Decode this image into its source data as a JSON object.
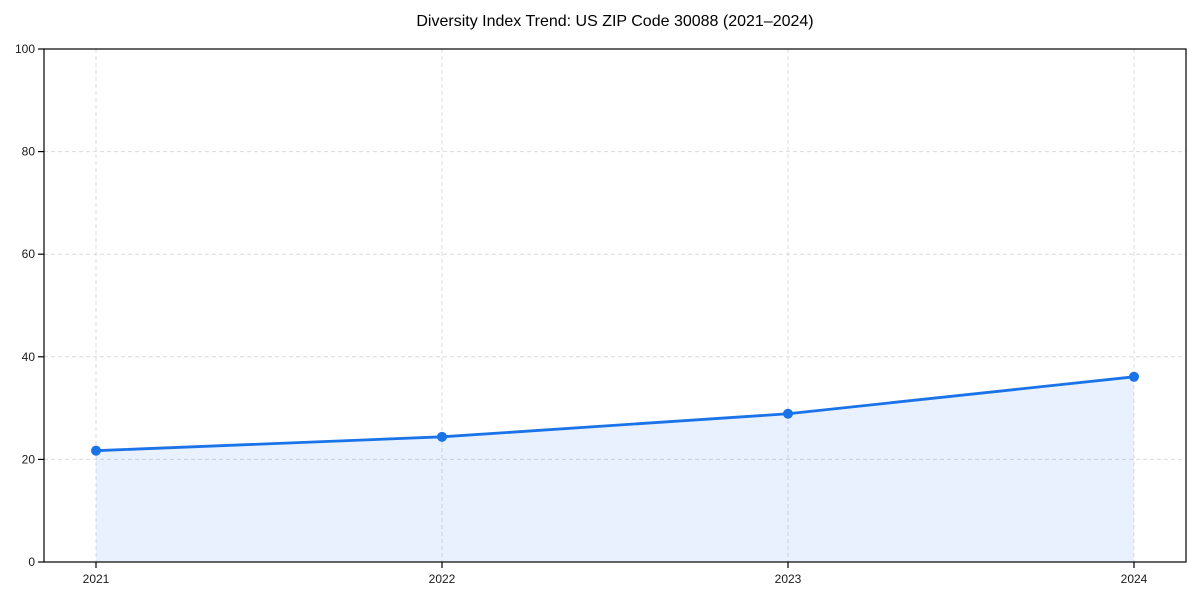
{
  "page": {
    "background": "#ffffff"
  },
  "chart_data": {
    "type": "line",
    "title": "Diversity Index Trend: US ZIP Code 30088 (2021–2024)",
    "categories": [
      "2021",
      "2022",
      "2023",
      "2024"
    ],
    "values": [
      21.7,
      24.4,
      28.9,
      36.1
    ],
    "xlabel": "",
    "ylabel": "",
    "ylim": [
      0,
      100
    ],
    "yticks": [
      0,
      20,
      40,
      60,
      80,
      100
    ],
    "ytick_labels": [
      "0",
      "20",
      "40",
      "60",
      "80",
      "100"
    ],
    "grid": true,
    "grid_style": "dashed",
    "legend": "none",
    "area_fill": true,
    "colors": {
      "line": "#1a73e8",
      "marker": "#1a73e8",
      "area_fill": "rgba(26,115,232,0.10)",
      "gridline": "#dcdcdc",
      "axis": "#000000",
      "tick_label": "#1a1a1a",
      "title": "#000000"
    }
  }
}
